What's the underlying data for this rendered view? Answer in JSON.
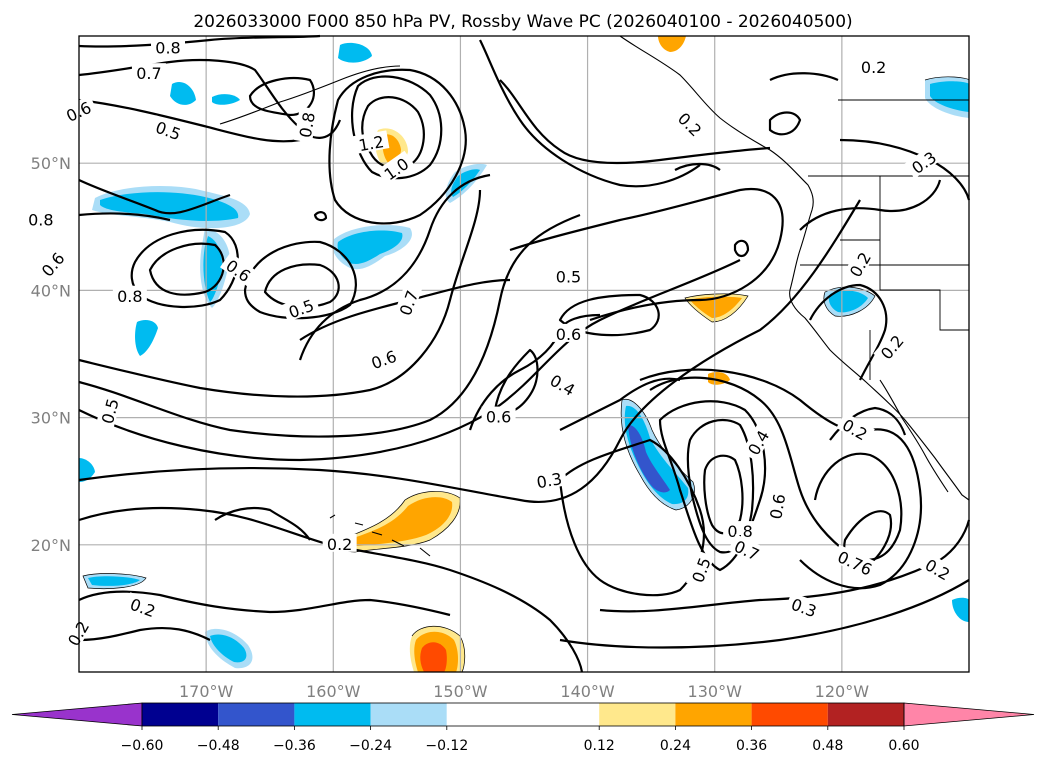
{
  "chart_data": {
    "type": "contour-map",
    "title": "2026033000 F000 850 hPa PV, Rossby Wave PC (2026040100 - 2026040500)",
    "x_ticks": [
      "170°W",
      "160°W",
      "150°W",
      "140°W",
      "130°W",
      "120°W"
    ],
    "y_ticks": [
      "50°N",
      "40°N",
      "30°N",
      "20°N"
    ],
    "lon_range": [
      -180,
      -110
    ],
    "lat_range": [
      10,
      60
    ],
    "colorbar": {
      "ticks": [
        "−0.60",
        "−0.48",
        "−0.36",
        "−0.24",
        "−0.12",
        "0.12",
        "0.24",
        "0.36",
        "0.48",
        "0.60"
      ],
      "colors": [
        "#9933cc",
        "#000090",
        "#3355cc",
        "#00bbf0",
        "#aaddf7",
        "#ffffff",
        "#ffe88c",
        "#ffa500",
        "#ff4a00",
        "#b22222",
        "#ff85a8"
      ]
    },
    "contour_labels": [
      {
        "text": "0.8",
        "lon": -173,
        "lat": 59,
        "rot": 0
      },
      {
        "text": "0.7",
        "lon": -174.5,
        "lat": 57,
        "rot": 0
      },
      {
        "text": "0.6",
        "lon": -180,
        "lat": 54,
        "rot": -25
      },
      {
        "text": "0.5",
        "lon": -173,
        "lat": 52.5,
        "rot": 20
      },
      {
        "text": "0.8",
        "lon": -162,
        "lat": 53,
        "rot": -80
      },
      {
        "text": "1.2",
        "lon": -157,
        "lat": 51.5,
        "rot": -10
      },
      {
        "text": "1.0",
        "lon": -155,
        "lat": 49.5,
        "rot": -35
      },
      {
        "text": "0.8",
        "lon": -183,
        "lat": 45.5,
        "rot": 0
      },
      {
        "text": "0.6",
        "lon": -182,
        "lat": 42,
        "rot": -50
      },
      {
        "text": "0.8",
        "lon": -176,
        "lat": 39.5,
        "rot": 0
      },
      {
        "text": "0.6",
        "lon": -167.5,
        "lat": 41.5,
        "rot": 35
      },
      {
        "text": "0.5",
        "lon": -162.5,
        "lat": 38.5,
        "rot": -20
      },
      {
        "text": "0.7",
        "lon": -154,
        "lat": 39,
        "rot": -70
      },
      {
        "text": "0.6",
        "lon": -156,
        "lat": 34.5,
        "rot": -20
      },
      {
        "text": "0.5",
        "lon": -141.5,
        "lat": 41,
        "rot": 0
      },
      {
        "text": "0.6",
        "lon": -141.5,
        "lat": 36.5,
        "rot": 0
      },
      {
        "text": "0.4",
        "lon": -142,
        "lat": 32.5,
        "rot": 30
      },
      {
        "text": "0.6",
        "lon": -147,
        "lat": 30,
        "rot": 0
      },
      {
        "text": "0.5",
        "lon": -177.5,
        "lat": 30.5,
        "rot": -75
      },
      {
        "text": "0.3",
        "lon": -143,
        "lat": 25,
        "rot": -10
      },
      {
        "text": "0.2",
        "lon": -132,
        "lat": 53,
        "rot": 45
      },
      {
        "text": "0.2",
        "lon": -117.5,
        "lat": 57.5,
        "rot": 0
      },
      {
        "text": "0.3",
        "lon": -113.5,
        "lat": 50,
        "rot": -35
      },
      {
        "text": "0.2",
        "lon": -118.5,
        "lat": 42,
        "rot": -60
      },
      {
        "text": "0.2",
        "lon": -116,
        "lat": 35.5,
        "rot": -50
      },
      {
        "text": "0.2",
        "lon": -119,
        "lat": 29,
        "rot": 30
      },
      {
        "text": "0.4",
        "lon": -126.5,
        "lat": 28,
        "rot": -60
      },
      {
        "text": "0.6",
        "lon": -125,
        "lat": 23,
        "rot": -80
      },
      {
        "text": "0.8",
        "lon": -128,
        "lat": 21,
        "rot": 0
      },
      {
        "text": "0.7",
        "lon": -127.5,
        "lat": 19.5,
        "rot": 25
      },
      {
        "text": "0.5",
        "lon": -131,
        "lat": 18,
        "rot": -70
      },
      {
        "text": "0.76",
        "lon": -119,
        "lat": 18.5,
        "rot": 25
      },
      {
        "text": "0.3",
        "lon": -123,
        "lat": 15,
        "rot": 20
      },
      {
        "text": "0.2",
        "lon": -112.5,
        "lat": 18,
        "rot": 30
      },
      {
        "text": "0.2",
        "lon": -159.5,
        "lat": 20,
        "rot": 0
      },
      {
        "text": "0.2",
        "lon": -175,
        "lat": 15,
        "rot": 20
      },
      {
        "text": "0.2",
        "lon": -180,
        "lat": 13,
        "rot": -60
      }
    ]
  }
}
